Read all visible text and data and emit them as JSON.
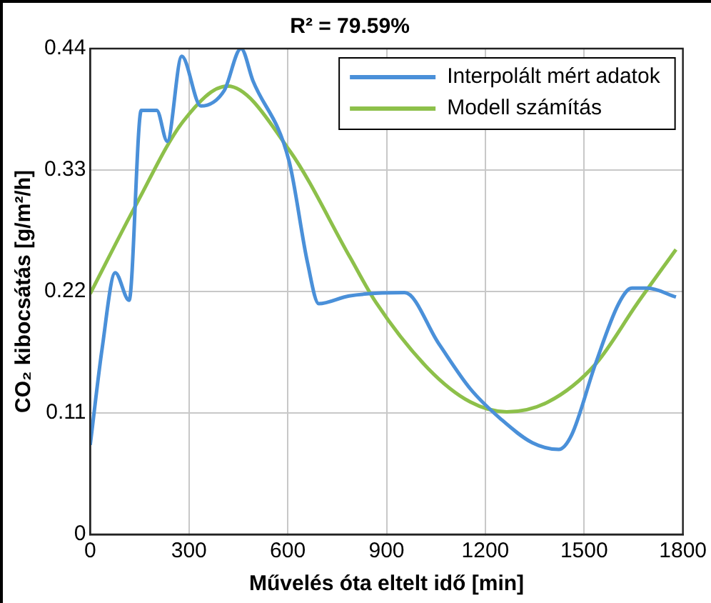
{
  "chart_data": {
    "type": "line",
    "title": "R² = 79.59%",
    "xlabel": "Művelés óta eltelt idő [min]",
    "ylabel": "CO₂ kibocsátás [g/m²/h]",
    "xlim": [
      0,
      1800
    ],
    "xticks": [
      0,
      300,
      600,
      900,
      1200,
      1500,
      1800
    ],
    "ylim": [
      0,
      0.44
    ],
    "yticks": [
      0,
      0.11,
      0.22,
      0.33,
      0.44
    ],
    "grid": true,
    "legend": "top right",
    "line_style": "solid",
    "marker": "none",
    "series": [
      {
        "name": "Interpolált mért adatok",
        "color": "#4a90d9",
        "x": [
          0,
          36,
          76,
          118,
          155,
          202,
          234,
          278,
          336,
          407,
          458,
          494,
          604,
          660,
          694,
          786,
          955,
          1058,
          1154,
          1249,
          1343,
          1423,
          1462,
          1534,
          1605,
          1645,
          1692,
          1779
        ],
        "values": [
          0.081,
          0.168,
          0.237,
          0.212,
          0.384,
          0.384,
          0.356,
          0.433,
          0.388,
          0.402,
          0.44,
          0.411,
          0.338,
          0.246,
          0.209,
          0.216,
          0.219,
          0.173,
          0.132,
          0.104,
          0.083,
          0.077,
          0.09,
          0.154,
          0.209,
          0.223,
          0.223,
          0.215
        ]
      },
      {
        "name": "Modell számítás",
        "color": "#8dc04a",
        "x": [
          0,
          140,
          282,
          417,
          607,
          789,
          868,
          1027,
          1154,
          1265,
          1391,
          1534,
          1661,
          1779
        ],
        "values": [
          0.218,
          0.299,
          0.374,
          0.406,
          0.347,
          0.251,
          0.21,
          0.15,
          0.12,
          0.111,
          0.12,
          0.154,
          0.209,
          0.258
        ]
      }
    ]
  }
}
